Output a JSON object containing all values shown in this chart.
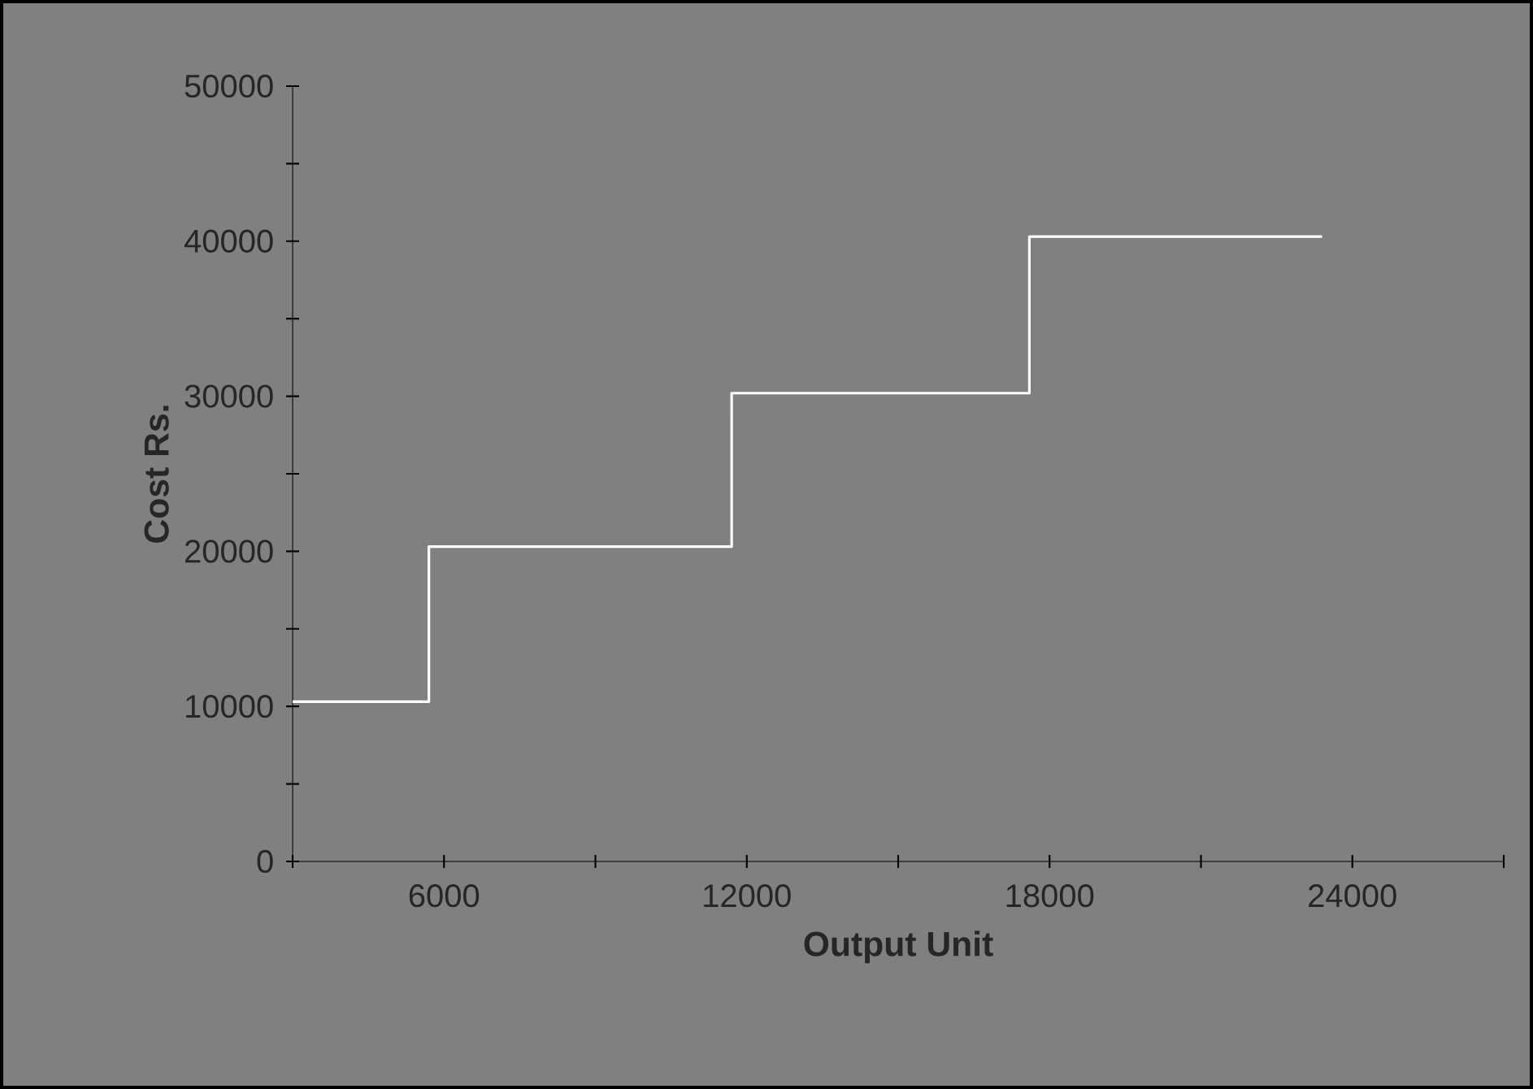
{
  "chart_data": {
    "type": "step",
    "xlabel": "Output Unit",
    "ylabel": "Cost Rs.",
    "x": [
      3000,
      5700,
      11700,
      17600,
      23400
    ],
    "series": [
      {
        "color": "#ffffff",
        "values": [
          10300,
          20300,
          30200,
          40300,
          40300
        ]
      }
    ],
    "xlim": [
      3000,
      27000
    ],
    "xticks": [
      {
        "value": 3000,
        "label": null
      },
      6000,
      {
        "value": 9000,
        "label": null
      },
      12000,
      {
        "value": 15000,
        "label": null
      },
      18000,
      {
        "value": 21000,
        "label": null
      },
      24000,
      {
        "value": 27000,
        "label": null
      }
    ],
    "ylim": [
      0,
      50000
    ],
    "yticks": [
      0,
      {
        "value": 5000,
        "label": null
      },
      10000,
      {
        "value": 15000,
        "label": null
      },
      20000,
      {
        "value": 25000,
        "label": null
      },
      30000,
      {
        "value": 35000,
        "label": null
      },
      40000,
      {
        "value": 45000,
        "label": null
      },
      50000
    ],
    "grid": false,
    "marker": "none",
    "line_style": "solid"
  }
}
